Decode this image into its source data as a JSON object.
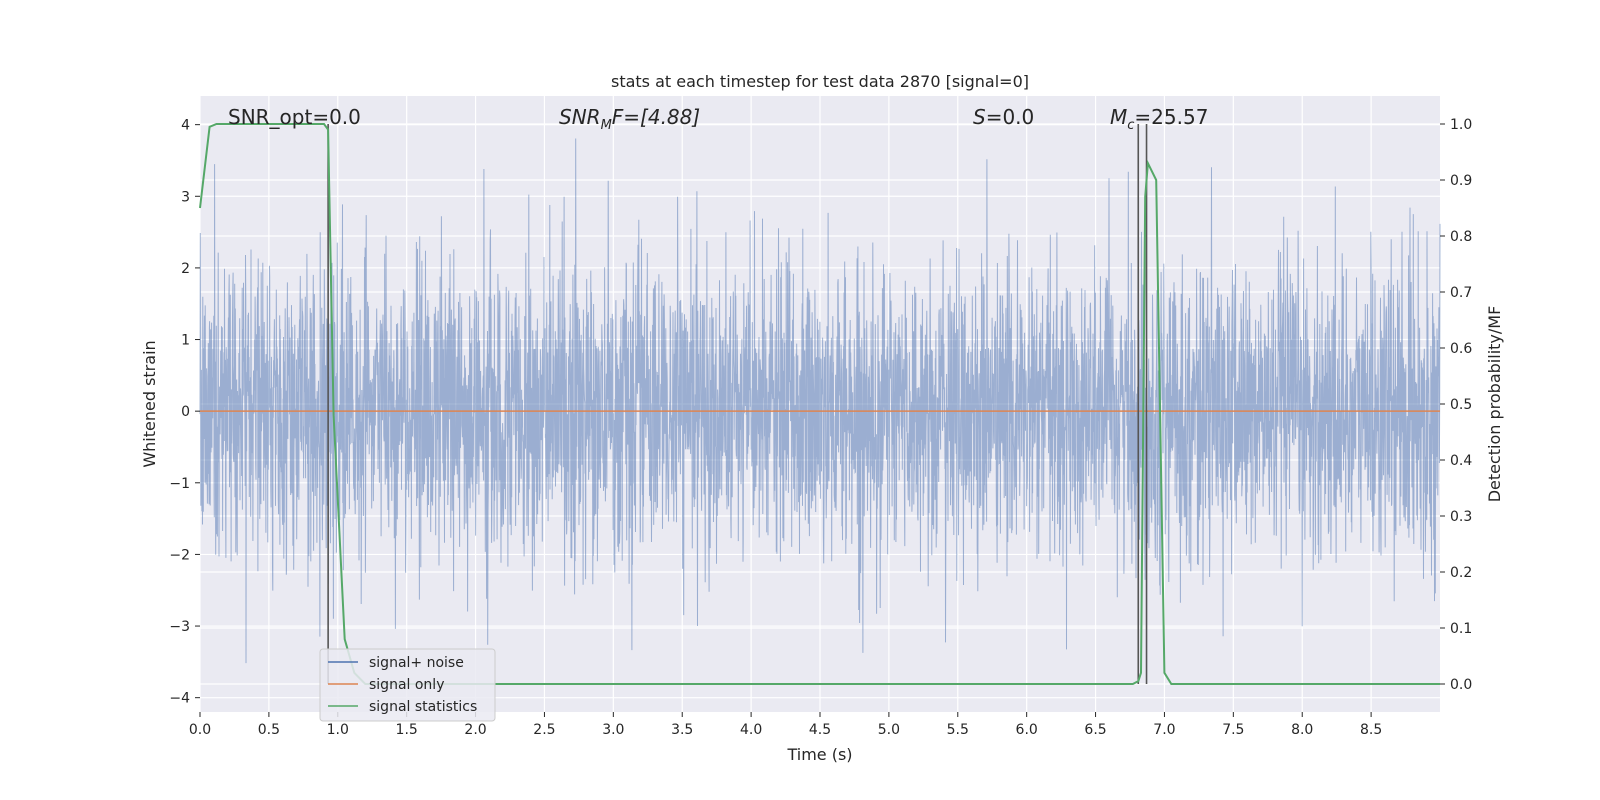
{
  "chart_data": {
    "type": "line",
    "title": "stats at each timestep for test data 2870 [signal=0]",
    "xlabel": "Time (s)",
    "ylabel": "Whitened strain",
    "y2label": "Detection probability/MF",
    "xlim": [
      0,
      9
    ],
    "ylim": [
      -4.2,
      4.4
    ],
    "y2lim": [
      -0.05,
      1.05
    ],
    "x_ticks": [
      0.0,
      0.5,
      1.0,
      1.5,
      2.0,
      2.5,
      3.0,
      3.5,
      4.0,
      4.5,
      5.0,
      5.5,
      6.0,
      6.5,
      7.0,
      7.5,
      8.0,
      8.5
    ],
    "x_tick_labels": [
      "0.0",
      "0.5",
      "1.0",
      "1.5",
      "2.0",
      "2.5",
      "3.0",
      "3.5",
      "4.0",
      "4.5",
      "5.0",
      "5.5",
      "6.0",
      "6.5",
      "7.0",
      "7.5",
      "8.0",
      "8.5"
    ],
    "y_ticks": [
      -4,
      -3,
      -2,
      -1,
      0,
      1,
      2,
      3,
      4
    ],
    "y_tick_labels": [
      "−4",
      "−3",
      "−2",
      "−1",
      "0",
      "1",
      "2",
      "3",
      "4"
    ],
    "y2_ticks": [
      0.0,
      0.1,
      0.2,
      0.3,
      0.4,
      0.5,
      0.6,
      0.7,
      0.8,
      0.9,
      1.0
    ],
    "y2_tick_labels": [
      "0.0",
      "0.1",
      "0.2",
      "0.3",
      "0.4",
      "0.5",
      "0.6",
      "0.7",
      "0.8",
      "0.9",
      "1.0"
    ],
    "grid": true,
    "legend": {
      "placement": "lower-left",
      "entries": [
        {
          "label": "signal+ noise",
          "color": "#4c72b0"
        },
        {
          "label": "signal only",
          "color": "#dd8452"
        },
        {
          "label": "signal statistics",
          "color": "#55a868"
        }
      ]
    },
    "annotations": {
      "snr_opt": "SNR_opt=0.0",
      "snr_mf_main": "SNR",
      "snr_mf_sub": "M",
      "snr_mf_rest": "F=[4.88]",
      "s_main": "S",
      "s_rest": "=0.0",
      "mc_main": "M",
      "mc_sub": "c",
      "mc_rest": "=25.57"
    },
    "series": [
      {
        "name": "signal+ noise",
        "color": "#4c72b0",
        "note_values": "whitened noise, approx. unit variance, spikes up to ~4.0"
      },
      {
        "name": "signal only",
        "color": "#dd8452",
        "x": [
          0,
          9
        ],
        "y": [
          0,
          0
        ]
      },
      {
        "name": "signal statistics",
        "color": "#55a868",
        "axis": "right",
        "x": [
          0.0,
          0.07,
          0.12,
          0.9,
          0.93,
          0.97,
          1.05,
          1.12,
          1.2,
          6.77,
          6.81,
          6.83,
          6.86,
          6.88,
          6.94,
          7.0,
          7.05,
          9.0
        ],
        "y": [
          0.85,
          0.995,
          1.0,
          1.0,
          0.99,
          0.48,
          0.08,
          0.02,
          0.0,
          0.0,
          0.005,
          0.02,
          0.87,
          0.93,
          0.9,
          0.02,
          0.0,
          0.0
        ]
      }
    ],
    "vertical_markers": [
      0.93,
      6.81,
      6.87
    ]
  }
}
